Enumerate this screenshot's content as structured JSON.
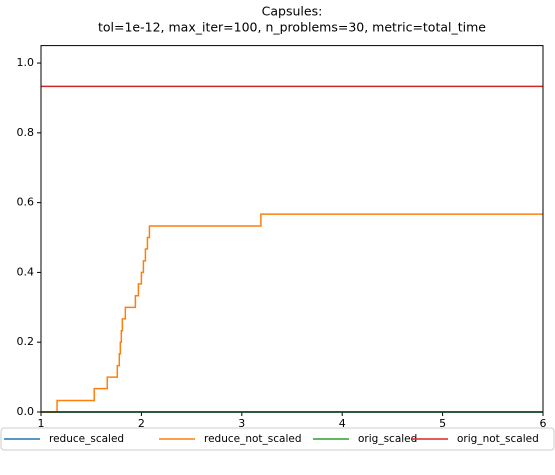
{
  "chart_data": {
    "type": "line",
    "drawstyle": "steps-post",
    "title": "Capsules:",
    "subtitle": "tol=1e-12, max_iter=100, n_problems=30, metric=total_time",
    "xlim": [
      1,
      6
    ],
    "xticks": [
      1,
      2,
      3,
      4,
      5,
      6
    ],
    "ylim": [
      0,
      1.05
    ],
    "yticks": [
      {
        "value": 0,
        "label": "0.0"
      },
      0.2,
      0.4,
      0.6,
      0.8,
      {
        "value": 1,
        "label": "1.0"
      }
    ],
    "legend": "bottom",
    "series": [
      {
        "name": "reduce_scaled",
        "color": "#1f77b4",
        "x": [
          1,
          6
        ],
        "values": [
          0,
          0
        ]
      },
      {
        "name": "reduce_not_scaled",
        "color": "#ff7f0e",
        "x": [
          1,
          1.16,
          1.53,
          1.66,
          1.76,
          1.78,
          1.79,
          1.8,
          1.81,
          1.84,
          1.94,
          1.97,
          2.0,
          2.02,
          2.04,
          2.06,
          2.08,
          3.19,
          6
        ],
        "values": [
          0,
          0.033,
          0.067,
          0.1,
          0.133,
          0.167,
          0.2,
          0.233,
          0.267,
          0.3,
          0.333,
          0.367,
          0.4,
          0.433,
          0.467,
          0.5,
          0.533,
          0.567,
          0.567
        ]
      },
      {
        "name": "orig_scaled",
        "color": "#2ca02c",
        "x": [
          1,
          6
        ],
        "values": [
          0,
          0
        ]
      },
      {
        "name": "orig_not_scaled",
        "color": "#d62728",
        "x": [
          1,
          6
        ],
        "values": [
          0.933,
          0.933
        ]
      }
    ]
  }
}
